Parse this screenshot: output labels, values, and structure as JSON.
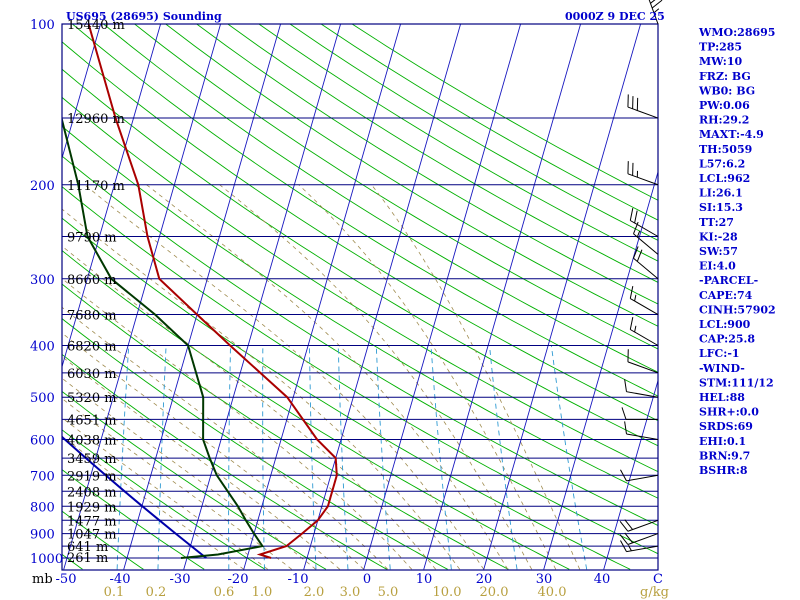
{
  "chart_data": {
    "type": "skew-t log-p sounding",
    "title": "US695 (28695) Sounding",
    "time_label": "0000Z  9 DEC 25",
    "pressure_unit": "mb",
    "mixing_ratio_unit": "g/kg",
    "pressure_ticks": [
      "100",
      "200",
      "300",
      "400",
      "500",
      "600",
      "700",
      "800",
      "900",
      "1000"
    ],
    "pressure_values": [
      100,
      200,
      300,
      400,
      500,
      600,
      700,
      800,
      900,
      1000
    ],
    "temperature_ticks": [
      "-50",
      "-40",
      "-30",
      "-20",
      "-10",
      "0",
      "10",
      "20",
      "30",
      "40",
      "C"
    ],
    "temperature_values": [
      -50,
      -40,
      -30,
      -20,
      -10,
      0,
      10,
      20,
      30,
      40
    ],
    "mixing_ratio_labels": [
      "0.1",
      "0.2",
      "0.6",
      "1.0",
      "2.0",
      "3.0",
      "5.0",
      "10.0",
      "20.0",
      "40.0"
    ],
    "height_labels": [
      {
        "text": "15440 m",
        "p": 100
      },
      {
        "text": "12960 m",
        "p": 150
      },
      {
        "text": "11170 m",
        "p": 200
      },
      {
        "text": "9790 m",
        "p": 250
      },
      {
        "text": "8660 m",
        "p": 300
      },
      {
        "text": "7680 m",
        "p": 350
      },
      {
        "text": "6820 m",
        "p": 400
      },
      {
        "text": "6030 m",
        "p": 450
      },
      {
        "text": "5320 m",
        "p": 500
      },
      {
        "text": "4651 m",
        "p": 550
      },
      {
        "text": "4038 m",
        "p": 600
      },
      {
        "text": "3459 m",
        "p": 650
      },
      {
        "text": "2919 m",
        "p": 700
      },
      {
        "text": "2408 m",
        "p": 750
      },
      {
        "text": "1929 m",
        "p": 800
      },
      {
        "text": "1477 m",
        "p": 850
      },
      {
        "text": "1047 m",
        "p": 900
      },
      {
        "text": "641 m",
        "p": 950
      },
      {
        "text": "261 m",
        "p": 995
      }
    ],
    "temperature_profile": [
      {
        "p": 1000,
        "t": -16
      },
      {
        "p": 985,
        "t": -18
      },
      {
        "p": 950,
        "t": -14
      },
      {
        "p": 925,
        "t": -13
      },
      {
        "p": 900,
        "t": -12
      },
      {
        "p": 850,
        "t": -10
      },
      {
        "p": 800,
        "t": -9
      },
      {
        "p": 700,
        "t": -9
      },
      {
        "p": 650,
        "t": -10
      },
      {
        "p": 600,
        "t": -14
      },
      {
        "p": 500,
        "t": -21
      },
      {
        "p": 400,
        "t": -33
      },
      {
        "p": 350,
        "t": -40
      },
      {
        "p": 300,
        "t": -48
      },
      {
        "p": 250,
        "t": -52
      },
      {
        "p": 200,
        "t": -56
      },
      {
        "p": 150,
        "t": -63
      },
      {
        "p": 100,
        "t": -72
      }
    ],
    "dewpoint_profile": [
      {
        "p": 1000,
        "t": -31
      },
      {
        "p": 985,
        "t": -25
      },
      {
        "p": 950,
        "t": -18
      },
      {
        "p": 900,
        "t": -20
      },
      {
        "p": 850,
        "t": -22
      },
      {
        "p": 800,
        "t": -24
      },
      {
        "p": 700,
        "t": -29
      },
      {
        "p": 650,
        "t": -31
      },
      {
        "p": 600,
        "t": -33
      },
      {
        "p": 500,
        "t": -35
      },
      {
        "p": 400,
        "t": -40
      },
      {
        "p": 350,
        "t": -47
      },
      {
        "p": 300,
        "t": -56
      },
      {
        "p": 250,
        "t": -62
      },
      {
        "p": 200,
        "t": -66
      },
      {
        "p": 150,
        "t": -72
      },
      {
        "p": 100,
        "t": -82
      }
    ],
    "parcel_curve_pressures": [
      1000,
      950,
      900,
      850,
      800,
      750,
      700,
      650,
      600,
      550,
      500,
      450,
      400,
      350,
      300,
      250,
      200,
      150,
      100
    ],
    "wind_barbs": [
      {
        "p": 100,
        "dir": 340,
        "spd": 45
      },
      {
        "p": 150,
        "dir": 290,
        "spd": 30
      },
      {
        "p": 200,
        "dir": 290,
        "spd": 25
      },
      {
        "p": 250,
        "dir": 300,
        "spd": 20
      },
      {
        "p": 270,
        "dir": 310,
        "spd": 15
      },
      {
        "p": 300,
        "dir": 310,
        "spd": 20
      },
      {
        "p": 350,
        "dir": 300,
        "spd": 15
      },
      {
        "p": 400,
        "dir": 300,
        "spd": 15
      },
      {
        "p": 450,
        "dir": 290,
        "spd": 10
      },
      {
        "p": 500,
        "dir": 280,
        "spd": 10
      },
      {
        "p": 550,
        "dir": 270,
        "spd": 10
      },
      {
        "p": 600,
        "dir": 280,
        "spd": 10
      },
      {
        "p": 700,
        "dir": 260,
        "spd": 10
      },
      {
        "p": 850,
        "dir": 250,
        "spd": 20
      },
      {
        "p": 900,
        "dir": 250,
        "spd": 20
      },
      {
        "p": 950,
        "dir": 260,
        "spd": 15
      }
    ],
    "grid": true,
    "colors": {
      "frame": "#000080",
      "isobar": "#000080",
      "isotherm": "#1818c0",
      "dry_adiabat": "#00b000",
      "moist_adiabat": "#a08c50",
      "mixing_ratio": "#2e9ad2",
      "temperature": "#aa0000",
      "dewpoint": "#003800",
      "parcel": "#0000aa",
      "wind_barb": "#000000"
    }
  },
  "indices": [
    "WMO:28695",
    "TP:285",
    "MW:10",
    "FRZ: BG",
    "WB0: BG",
    "PW:0.06",
    "RH:29.2",
    "MAXT:-4.9",
    "TH:5059",
    "L57:6.2",
    "LCL:962",
    "LI:26.1",
    "SI:15.3",
    "TT:27",
    "KI:-28",
    "SW:57",
    "EI:4.0",
    "-PARCEL-",
    "CAPE:74",
    "CINH:57902",
    "LCL:900",
    "CAP:25.8",
    "LFC:-1",
    "-WIND-",
    "STM:111/12",
    "HEL:88",
    "SHR+:0.0",
    "SRDS:69",
    "EHI:0.1",
    "BRN:9.7",
    "BSHR:8"
  ]
}
